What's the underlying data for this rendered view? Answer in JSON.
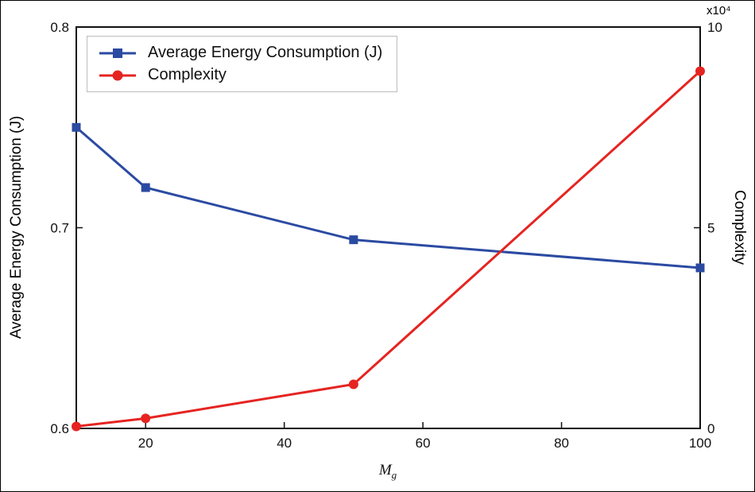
{
  "figure": {
    "background": "#ffffff",
    "frame_color": "#111111"
  },
  "chart_data": {
    "type": "line",
    "title": "",
    "x_label_main": "M",
    "x_label_sub": "g",
    "x_range": [
      10,
      100
    ],
    "x_ticks": [
      {
        "value": 20,
        "label": "20"
      },
      {
        "value": 40,
        "label": "40"
      },
      {
        "value": 60,
        "label": "60"
      },
      {
        "value": 80,
        "label": "80"
      },
      {
        "value": 100,
        "label": "100"
      }
    ],
    "left_axis": {
      "label": "Average Energy Consumption (J)",
      "range": [
        0.6,
        0.8
      ],
      "ticks": [
        {
          "value": 0.6,
          "label": "0.6"
        },
        {
          "value": 0.7,
          "label": "0.7"
        },
        {
          "value": 0.8,
          "label": "0.8"
        }
      ]
    },
    "right_axis": {
      "label": "Complexity",
      "range": [
        0,
        10
      ],
      "multiplier": "x10⁴",
      "ticks": [
        {
          "value": 0,
          "label": "0"
        },
        {
          "value": 5,
          "label": "5"
        },
        {
          "value": 10,
          "label": "10"
        }
      ]
    },
    "series": [
      {
        "name": "Average Energy Consumption (J)",
        "axis": "left",
        "color": "#2b4aa2",
        "marker": "square",
        "x": [
          10,
          20,
          50,
          100
        ],
        "y": [
          0.75,
          0.72,
          0.694,
          0.68
        ]
      },
      {
        "name": "Complexity",
        "axis": "right",
        "color": "#e52421",
        "marker": "circle",
        "x": [
          10,
          20,
          50,
          100
        ],
        "y": [
          0.05,
          0.25,
          1.1,
          8.9
        ]
      }
    ],
    "legend": {
      "position": "upper-left"
    }
  }
}
